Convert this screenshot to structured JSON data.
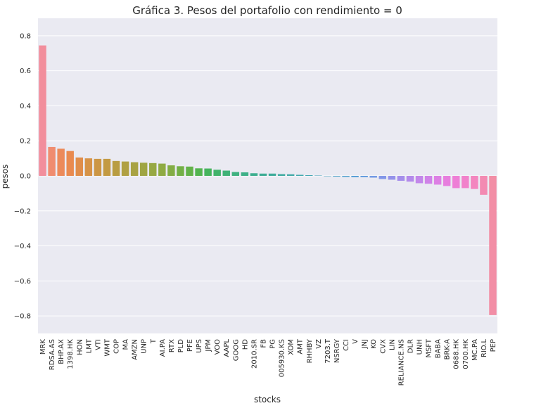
{
  "chart_data": {
    "type": "bar",
    "title": "Gráfica 3. Pesos del portafolio con rendimiento = 0",
    "xlabel": "stocks",
    "ylabel": "pesos",
    "ylim": [
      -0.9,
      0.9
    ],
    "yticks": [
      "0.8",
      "0.6",
      "0.4",
      "0.2",
      "0.0",
      "−0.2",
      "−0.4",
      "−0.6",
      "−0.8"
    ],
    "ytick_values": [
      0.8,
      0.6,
      0.4,
      0.2,
      0.0,
      -0.2,
      -0.4,
      -0.6,
      -0.8
    ],
    "grid": true,
    "background": "#eaeaf2",
    "categories": [
      "MRK",
      "RDSA.AS",
      "BHP.AX",
      "1398.HK",
      "HON",
      "LMT",
      "VTI",
      "WMT",
      "COP",
      "MA",
      "AMZN",
      "UNP",
      "T",
      "AI.PA",
      "RTX",
      "PLD",
      "PFE",
      "UPS",
      "JPM",
      "VOO",
      "AAPL",
      "GOOG",
      "HD",
      "2010.SR",
      "FB",
      "PG",
      "005930.KS",
      "XOM",
      "AMT",
      "RHHBY",
      "VZ",
      "7203.T",
      "NSRGY",
      "CCI",
      "V",
      "JNJ",
      "KO",
      "CVX",
      "LIN",
      "RELIANCE.NS",
      "DLR",
      "UNH",
      "MSFT",
      "BABA",
      "BRK-A",
      "0688.HK",
      "0700.HK",
      "MC.PA",
      "RIO.L",
      "PEP"
    ],
    "values": [
      0.745,
      0.165,
      0.155,
      0.142,
      0.105,
      0.1,
      0.097,
      0.097,
      0.085,
      0.082,
      0.078,
      0.075,
      0.073,
      0.07,
      0.06,
      0.055,
      0.053,
      0.043,
      0.042,
      0.035,
      0.03,
      0.022,
      0.02,
      0.015,
      0.013,
      0.013,
      0.01,
      0.009,
      0.006,
      0.004,
      0.002,
      -0.002,
      -0.004,
      -0.006,
      -0.008,
      -0.008,
      -0.01,
      -0.018,
      -0.022,
      -0.028,
      -0.033,
      -0.042,
      -0.045,
      -0.05,
      -0.058,
      -0.07,
      -0.07,
      -0.075,
      -0.108,
      -0.795
    ],
    "colors": [
      "#f28e9c",
      "#f08c6f",
      "#ec8a5a",
      "#e98a4f",
      "#e08d4a",
      "#d69347",
      "#cc9644",
      "#c39a42",
      "#b99d42",
      "#b0a043",
      "#a8a243",
      "#9fa543",
      "#97a843",
      "#8fab43",
      "#83ad45",
      "#73b046",
      "#63b249",
      "#53b44f",
      "#46b45d",
      "#42b36b",
      "#40b277",
      "#3fb180",
      "#3eb088",
      "#3eaf8f",
      "#3ead95",
      "#3fac9b",
      "#40aba1",
      "#41aaa7",
      "#42a9ad",
      "#44a8b3",
      "#47a6ba",
      "#4aa5c1",
      "#4ea3c8",
      "#53a1cf",
      "#5aa0d6",
      "#659dde",
      "#739ae4",
      "#8296e8",
      "#9592ea",
      "#a58eeb",
      "#b48aeb",
      "#c387ea",
      "#d083e8",
      "#dd80e4",
      "#e77ede",
      "#ee7fd6",
      "#f181cb",
      "#f386bf",
      "#f38ab2",
      "#f28ea6"
    ]
  }
}
